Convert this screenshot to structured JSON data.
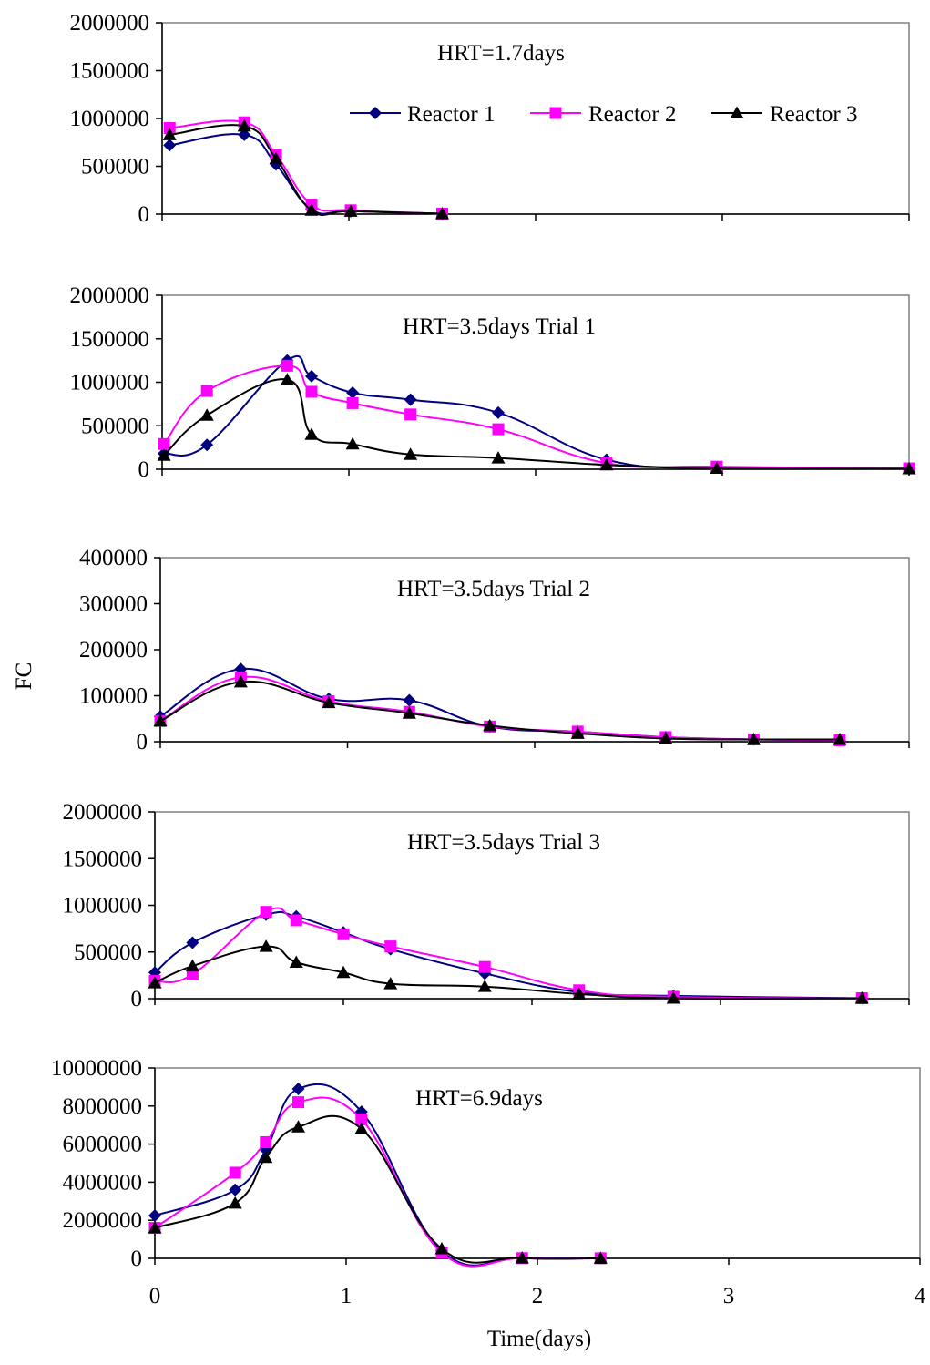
{
  "figure": {
    "ylabel": "FC",
    "xlabel": "Time(days)",
    "xticks": [
      "0",
      "1",
      "2",
      "3",
      "4"
    ],
    "legend": [
      "Reactor 1",
      "Reactor 2",
      "Reactor 3"
    ]
  },
  "colors": {
    "Reactor 1": "#000080",
    "Reactor 2": "#ff00ff",
    "Reactor 3": "#000000"
  },
  "chart_data": [
    {
      "type": "line",
      "title": "HRT=1.7days",
      "ylim": [
        0,
        2000000
      ],
      "yticks": [
        "0",
        "500000",
        "1000000",
        "1500000",
        "2000000"
      ],
      "xlim": [
        0,
        4
      ],
      "legend_position": "top-right",
      "series": [
        {
          "name": "Reactor 1",
          "marker": "diamond",
          "x": [
            0.04,
            0.44,
            0.61,
            0.8,
            1.01,
            1.5
          ],
          "y": [
            720000,
            830000,
            520000,
            50000,
            30000,
            5000
          ]
        },
        {
          "name": "Reactor 2",
          "marker": "square",
          "x": [
            0.04,
            0.44,
            0.61,
            0.8,
            1.01,
            1.5
          ],
          "y": [
            900000,
            960000,
            620000,
            100000,
            40000,
            5000
          ]
        },
        {
          "name": "Reactor 3",
          "marker": "triangle",
          "x": [
            0.04,
            0.44,
            0.61,
            0.8,
            1.01,
            1.5
          ],
          "y": [
            830000,
            920000,
            580000,
            40000,
            30000,
            5000
          ]
        }
      ]
    },
    {
      "type": "line",
      "title": "HRT=3.5days Trial 1",
      "ylim": [
        0,
        2000000
      ],
      "yticks": [
        "0",
        "500000",
        "1000000",
        "1500000",
        "2000000"
      ],
      "xlim": [
        0,
        4
      ],
      "series": [
        {
          "name": "Reactor 1",
          "marker": "diamond",
          "x": [
            0.01,
            0.24,
            0.67,
            0.8,
            1.02,
            1.33,
            1.8,
            2.38,
            2.97,
            4.0
          ],
          "y": [
            180000,
            280000,
            1250000,
            1070000,
            880000,
            800000,
            650000,
            110000,
            20000,
            5000
          ]
        },
        {
          "name": "Reactor 2",
          "marker": "square",
          "x": [
            0.01,
            0.24,
            0.67,
            0.8,
            1.02,
            1.33,
            1.8,
            2.38,
            2.97,
            4.0
          ],
          "y": [
            290000,
            900000,
            1190000,
            890000,
            760000,
            630000,
            460000,
            70000,
            30000,
            10000
          ]
        },
        {
          "name": "Reactor 3",
          "marker": "triangle",
          "x": [
            0.01,
            0.24,
            0.67,
            0.8,
            1.02,
            1.33,
            1.8,
            2.38,
            2.97,
            4.0
          ],
          "y": [
            160000,
            620000,
            1030000,
            400000,
            290000,
            170000,
            130000,
            50000,
            10000,
            5000
          ]
        }
      ]
    },
    {
      "type": "line",
      "title": "HRT=3.5days Trial 2",
      "ylim": [
        0,
        400000
      ],
      "yticks": [
        "0",
        "100000",
        "200000",
        "300000",
        "400000"
      ],
      "xlim": [
        0,
        4
      ],
      "series": [
        {
          "name": "Reactor 1",
          "marker": "diamond",
          "x": [
            0.0,
            0.43,
            0.9,
            1.33,
            1.76,
            2.23,
            2.7,
            3.17,
            3.63
          ],
          "y": [
            55000,
            158000,
            93000,
            90000,
            33000,
            22000,
            10000,
            5000,
            3000
          ]
        },
        {
          "name": "Reactor 2",
          "marker": "square",
          "x": [
            0.0,
            0.43,
            0.9,
            1.33,
            1.76,
            2.23,
            2.7,
            3.17,
            3.63
          ],
          "y": [
            45000,
            140000,
            88000,
            65000,
            33000,
            22000,
            10000,
            5000,
            3000
          ]
        },
        {
          "name": "Reactor 3",
          "marker": "triangle",
          "x": [
            0.0,
            0.43,
            0.9,
            1.33,
            1.76,
            2.23,
            2.7,
            3.17,
            3.63
          ],
          "y": [
            45000,
            130000,
            85000,
            62000,
            35000,
            18000,
            7000,
            5000,
            5000
          ]
        }
      ]
    },
    {
      "type": "line",
      "title": "HRT=3.5days Trial 3",
      "ylim": [
        0,
        2000000
      ],
      "yticks": [
        "0",
        "500000",
        "1000000",
        "1500000",
        "2000000"
      ],
      "xlim": [
        0,
        4
      ],
      "series": [
        {
          "name": "Reactor 1",
          "marker": "diamond",
          "x": [
            0.0,
            0.2,
            0.59,
            0.75,
            1.0,
            1.25,
            1.75,
            2.25,
            2.75,
            3.75
          ],
          "y": [
            280000,
            600000,
            900000,
            880000,
            710000,
            530000,
            270000,
            70000,
            30000,
            5000
          ]
        },
        {
          "name": "Reactor 2",
          "marker": "square",
          "x": [
            0.0,
            0.2,
            0.59,
            0.75,
            1.0,
            1.25,
            1.75,
            2.25,
            2.75,
            3.75
          ],
          "y": [
            190000,
            260000,
            930000,
            840000,
            690000,
            560000,
            340000,
            90000,
            20000,
            5000
          ]
        },
        {
          "name": "Reactor 3",
          "marker": "triangle",
          "x": [
            0.0,
            0.2,
            0.59,
            0.75,
            1.0,
            1.25,
            1.75,
            2.25,
            2.75,
            3.75
          ],
          "y": [
            170000,
            350000,
            560000,
            390000,
            280000,
            160000,
            130000,
            50000,
            5000,
            5000
          ]
        }
      ]
    },
    {
      "type": "line",
      "title": "HRT=6.9days",
      "ylim": [
        0,
        10000000
      ],
      "yticks": [
        "0",
        "2000000",
        "4000000",
        "6000000",
        "8000000",
        "10000000"
      ],
      "xlim": [
        0,
        4
      ],
      "xticks": [
        "0",
        "1",
        "2",
        "3",
        "4"
      ],
      "series": [
        {
          "name": "Reactor 1",
          "marker": "diamond",
          "x": [
            0.0,
            0.42,
            0.58,
            0.75,
            1.08,
            1.5,
            1.92,
            2.33
          ],
          "y": [
            2250000,
            3600000,
            5700000,
            8900000,
            7700000,
            400000,
            30000,
            10000
          ]
        },
        {
          "name": "Reactor 2",
          "marker": "square",
          "x": [
            0.0,
            0.42,
            0.58,
            0.75,
            1.08,
            1.5,
            1.92,
            2.33
          ],
          "y": [
            1600000,
            4500000,
            6100000,
            8200000,
            7300000,
            300000,
            10000,
            5000
          ]
        },
        {
          "name": "Reactor 3",
          "marker": "triangle",
          "x": [
            0.0,
            0.42,
            0.58,
            0.75,
            1.08,
            1.5,
            1.92,
            2.33
          ],
          "y": [
            1600000,
            2900000,
            5300000,
            6900000,
            6800000,
            500000,
            20000,
            5000
          ]
        }
      ]
    }
  ]
}
